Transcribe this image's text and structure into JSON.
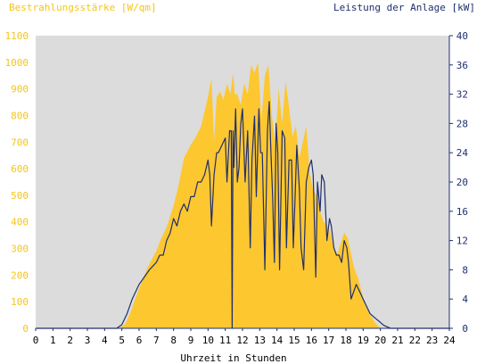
{
  "chart_data": {
    "type": "area",
    "title": "",
    "y_left_label": "Bestrahlungsstärke [W/qm]",
    "y_right_label": "Leistung der Anlage [kW]",
    "xlabel": "Uhrzeit in Stunden",
    "xlim": [
      0,
      24
    ],
    "ylim_left": [
      0,
      1100
    ],
    "ylim_right": [
      0,
      40
    ],
    "x_ticks": [
      "0",
      "1",
      "2",
      "3",
      "4",
      "5",
      "6",
      "7",
      "8",
      "9",
      "10",
      "11",
      "12",
      "13",
      "14",
      "15",
      "16",
      "17",
      "18",
      "19",
      "20",
      "21",
      "22",
      "23",
      "24"
    ],
    "y_left_ticks": [
      "0",
      "100",
      "200",
      "300",
      "400",
      "500",
      "600",
      "700",
      "800",
      "900",
      "1000",
      "1100"
    ],
    "y_right_ticks": [
      "0",
      "4",
      "8",
      "12",
      "16",
      "20",
      "24",
      "28",
      "32",
      "36",
      "40"
    ],
    "grid": false,
    "background": "#dcdcdc",
    "series": [
      {
        "name": "Bestrahlungsstärke",
        "axis": "left",
        "color": "#fdc72f",
        "x": [
          0,
          4.8,
          5.2,
          5.5,
          6.0,
          6.5,
          7.0,
          7.3,
          7.6,
          8.0,
          8.3,
          8.6,
          9.0,
          9.3,
          9.6,
          10.0,
          10.2,
          10.35,
          10.5,
          10.7,
          10.9,
          11.1,
          11.3,
          11.45,
          11.55,
          11.7,
          11.9,
          12.1,
          12.3,
          12.5,
          12.7,
          12.9,
          13.1,
          13.3,
          13.5,
          13.7,
          13.9,
          14.1,
          14.3,
          14.5,
          14.7,
          14.9,
          15.1,
          15.3,
          15.5,
          15.7,
          15.9,
          16.1,
          16.3,
          16.5,
          16.7,
          16.9,
          17.1,
          17.3,
          17.5,
          17.7,
          17.9,
          18.1,
          18.3,
          18.5,
          18.7,
          18.9,
          19.1,
          19.4,
          19.7,
          20.0,
          20.3,
          20.6,
          24
        ],
        "values": [
          0,
          0,
          15,
          60,
          150,
          230,
          290,
          340,
          380,
          460,
          540,
          640,
          690,
          720,
          760,
          870,
          940,
          700,
          870,
          890,
          860,
          920,
          880,
          960,
          880,
          880,
          840,
          920,
          880,
          990,
          960,
          1000,
          780,
          950,
          990,
          800,
          700,
          900,
          770,
          930,
          830,
          720,
          760,
          640,
          700,
          760,
          580,
          520,
          500,
          440,
          400,
          390,
          360,
          300,
          280,
          320,
          360,
          340,
          280,
          220,
          190,
          140,
          90,
          50,
          20,
          0,
          0,
          0,
          0
        ]
      },
      {
        "name": "Leistung der Anlage",
        "axis": "right",
        "color": "#1f2f6e",
        "x": [
          0,
          4.7,
          5.0,
          5.3,
          5.6,
          6.0,
          6.3,
          6.6,
          7.0,
          7.2,
          7.4,
          7.6,
          7.8,
          8.0,
          8.2,
          8.4,
          8.6,
          8.8,
          9.0,
          9.2,
          9.4,
          9.6,
          9.8,
          10.0,
          10.1,
          10.2,
          10.35,
          10.5,
          10.6,
          10.8,
          11.0,
          11.1,
          11.25,
          11.35,
          11.4,
          11.45,
          11.5,
          11.6,
          11.7,
          11.8,
          11.9,
          12.0,
          12.15,
          12.3,
          12.45,
          12.55,
          12.7,
          12.8,
          12.95,
          13.05,
          13.15,
          13.3,
          13.45,
          13.55,
          13.65,
          13.75,
          13.85,
          13.95,
          14.05,
          14.15,
          14.3,
          14.45,
          14.55,
          14.7,
          14.85,
          14.95,
          15.05,
          15.15,
          15.3,
          15.4,
          15.55,
          15.7,
          15.85,
          16.0,
          16.1,
          16.25,
          16.35,
          16.5,
          16.6,
          16.75,
          16.9,
          17.05,
          17.15,
          17.3,
          17.45,
          17.6,
          17.75,
          17.9,
          18.05,
          18.15,
          18.3,
          18.45,
          18.6,
          18.8,
          19.0,
          19.2,
          19.4,
          19.6,
          19.8,
          20.0,
          20.2,
          20.4,
          20.6,
          24
        ],
        "values": [
          0,
          0,
          0.5,
          2,
          4,
          6,
          7,
          8,
          9,
          10,
          10,
          12,
          13,
          15,
          14,
          16,
          17,
          16,
          18,
          18,
          20,
          20,
          21,
          23,
          21,
          14,
          21,
          24,
          24,
          25,
          26,
          20,
          27,
          27,
          0,
          27,
          22,
          30,
          20,
          22,
          28,
          30,
          20,
          27,
          11,
          23,
          29,
          18,
          30,
          24,
          24,
          8,
          27,
          31,
          24,
          18,
          9,
          28,
          24,
          8,
          27,
          26,
          11,
          23,
          23,
          11,
          18,
          25,
          19,
          11,
          8,
          20,
          22,
          23,
          21,
          7,
          20,
          16,
          21,
          20,
          12,
          15,
          14,
          11,
          10,
          10,
          9,
          12,
          11,
          9,
          4,
          5,
          6,
          5,
          4,
          3,
          2,
          1.6,
          1.2,
          0.8,
          0.4,
          0.2,
          0,
          0
        ]
      }
    ]
  }
}
